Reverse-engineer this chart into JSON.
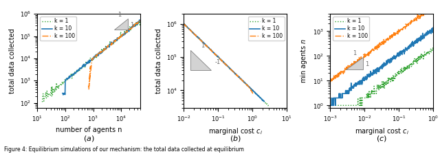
{
  "colors": {
    "k1": "#2ca02c",
    "k10": "#1f77b4",
    "k100": "#ff7f0e"
  },
  "subplot_a": {
    "xlabel": "number of agents n",
    "ylabel": "total data collected",
    "xlim": [
      10,
      50000
    ],
    "ylim": [
      60,
      1000000
    ],
    "xticks": [
      10,
      100,
      1000,
      10000
    ],
    "yticks": [
      100,
      1000,
      10000,
      100000
    ]
  },
  "subplot_b": {
    "xlabel": "marginal cost $c_i$",
    "ylabel": "total data collected",
    "xlim": [
      0.01,
      10
    ],
    "ylim": [
      3000,
      2000000
    ],
    "xticks": [
      0.01,
      0.1,
      1,
      10
    ],
    "yticks": [
      10000,
      100000,
      1000000
    ]
  },
  "subplot_c": {
    "xlabel": "marginal cost $c_i$",
    "ylabel": "min agents $n$",
    "xlim": [
      0.001,
      1
    ],
    "ylim": [
      0.8,
      5000
    ],
    "xticks": [
      0.001,
      0.01,
      0.1,
      1
    ],
    "yticks": [
      1,
      10,
      100,
      1000
    ]
  }
}
